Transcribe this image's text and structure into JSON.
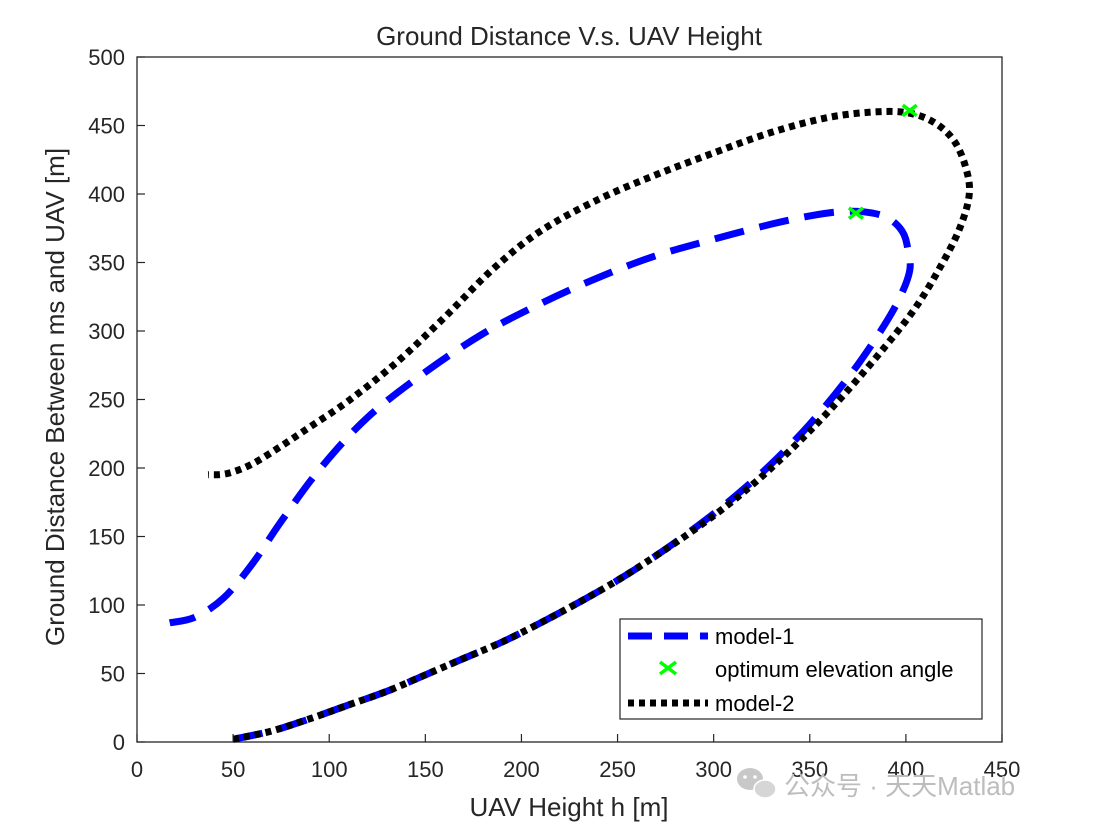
{
  "chart_data": {
    "type": "line",
    "title": "Ground Distance V.s. UAV  Height",
    "xlabel": "UAV Height h [m]",
    "ylabel": "Ground Distance Between ms and UAV [m]",
    "xlim": [
      0,
      450
    ],
    "ylim": [
      0,
      500
    ],
    "xticks": [
      0,
      50,
      100,
      150,
      200,
      250,
      300,
      350,
      400,
      450
    ],
    "yticks": [
      0,
      50,
      100,
      150,
      200,
      250,
      300,
      350,
      400,
      450,
      500
    ],
    "grid": false,
    "legend_position": "bottom-right",
    "series": [
      {
        "name": "model-1",
        "style": "dashed",
        "color": "#0000ff",
        "points": [
          [
            50,
            2
          ],
          [
            70,
            8
          ],
          [
            90,
            17
          ],
          [
            110,
            27
          ],
          [
            130,
            37
          ],
          [
            150,
            49
          ],
          [
            170,
            61
          ],
          [
            190,
            73
          ],
          [
            210,
            87
          ],
          [
            230,
            102
          ],
          [
            250,
            118
          ],
          [
            270,
            136
          ],
          [
            290,
            156
          ],
          [
            310,
            178
          ],
          [
            330,
            203
          ],
          [
            350,
            232
          ],
          [
            370,
            266
          ],
          [
            385,
            296
          ],
          [
            396,
            322
          ],
          [
            402,
            344
          ],
          [
            401,
            360
          ],
          [
            398,
            373
          ],
          [
            390,
            383
          ],
          [
            378,
            387
          ],
          [
            365,
            387
          ],
          [
            350,
            384
          ],
          [
            330,
            378
          ],
          [
            300,
            367
          ],
          [
            270,
            355
          ],
          [
            240,
            339
          ],
          [
            210,
            320
          ],
          [
            180,
            298
          ],
          [
            150,
            270
          ],
          [
            120,
            237
          ],
          [
            95,
            199
          ],
          [
            75,
            161
          ],
          [
            60,
            130
          ],
          [
            45,
            105
          ],
          [
            30,
            91
          ],
          [
            17,
            87
          ]
        ]
      },
      {
        "name": "model-2",
        "style": "dotted",
        "color": "#000000",
        "points": [
          [
            50,
            2
          ],
          [
            70,
            8
          ],
          [
            90,
            17
          ],
          [
            110,
            27
          ],
          [
            130,
            37
          ],
          [
            150,
            49
          ],
          [
            170,
            61
          ],
          [
            190,
            73
          ],
          [
            210,
            87
          ],
          [
            230,
            102
          ],
          [
            250,
            118
          ],
          [
            270,
            136
          ],
          [
            290,
            155
          ],
          [
            310,
            176
          ],
          [
            330,
            200
          ],
          [
            350,
            227
          ],
          [
            370,
            257
          ],
          [
            390,
            290
          ],
          [
            405,
            317
          ],
          [
            418,
            347
          ],
          [
            428,
            375
          ],
          [
            433,
            400
          ],
          [
            431,
            420
          ],
          [
            425,
            439
          ],
          [
            415,
            452
          ],
          [
            402,
            459
          ],
          [
            385,
            460
          ],
          [
            360,
            456
          ],
          [
            330,
            445
          ],
          [
            300,
            430
          ],
          [
            270,
            414
          ],
          [
            240,
            396
          ],
          [
            210,
            373
          ],
          [
            185,
            345
          ],
          [
            160,
            310
          ],
          [
            135,
            277
          ],
          [
            110,
            249
          ],
          [
            90,
            230
          ],
          [
            75,
            216
          ],
          [
            60,
            203
          ],
          [
            47,
            196
          ],
          [
            37,
            195
          ]
        ]
      }
    ],
    "markers": {
      "name": "optimum elevation angle",
      "color": "#00ff00",
      "points": [
        [
          374,
          386
        ],
        [
          402,
          461
        ]
      ]
    }
  },
  "watermark": {
    "text": "公众号 · 天天Matlab",
    "icon": "wechat-icon"
  }
}
